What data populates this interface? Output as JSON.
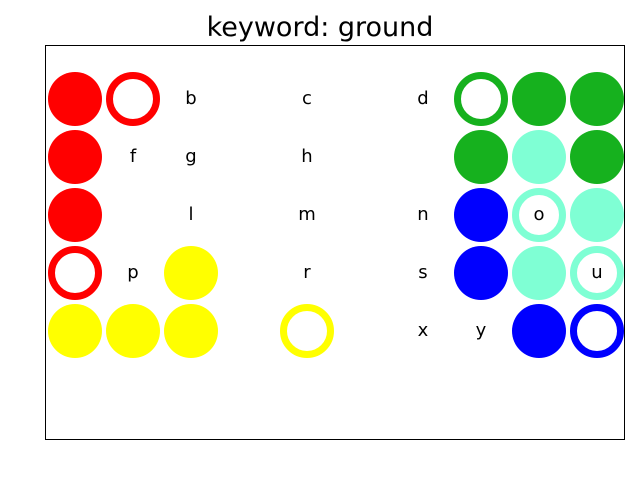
{
  "title": "keyword: ground",
  "colors": {
    "red": "#ff0000",
    "green": "#16b11e",
    "mint": "#7fffd4",
    "blue": "#0000ff",
    "yellow": "#ffff00"
  },
  "board": {
    "rows": [
      [
        {
          "color": "red",
          "style": "filled"
        },
        {
          "color": "red",
          "style": "ring"
        },
        {
          "letter": "b"
        },
        {
          "letter": "c"
        },
        {
          "letter": "d"
        },
        {
          "color": "green",
          "style": "ring"
        },
        {
          "color": "green",
          "style": "filled"
        },
        {
          "color": "green",
          "style": "filled"
        }
      ],
      [
        {
          "color": "red",
          "style": "filled"
        },
        {
          "letter": "f"
        },
        {
          "letter": "g"
        },
        {
          "letter": "h"
        },
        {},
        {
          "color": "green",
          "style": "filled"
        },
        {
          "color": "mint",
          "style": "filled"
        },
        {
          "color": "green",
          "style": "filled"
        }
      ],
      [
        {
          "color": "red",
          "style": "filled"
        },
        {},
        {
          "letter": "l"
        },
        {
          "letter": "m"
        },
        {
          "letter": "n"
        },
        {
          "color": "blue",
          "style": "filled"
        },
        {
          "color": "mint",
          "style": "ring",
          "letter": "o"
        },
        {
          "color": "mint",
          "style": "filled"
        }
      ],
      [
        {
          "color": "red",
          "style": "ring"
        },
        {
          "letter": "p"
        },
        {
          "color": "yellow",
          "style": "filled"
        },
        {
          "letter": "r"
        },
        {
          "letter": "s"
        },
        {
          "color": "blue",
          "style": "filled"
        },
        {
          "color": "mint",
          "style": "filled"
        },
        {
          "color": "mint",
          "style": "ring",
          "letter": "u"
        }
      ],
      [
        {
          "color": "yellow",
          "style": "filled"
        },
        {
          "color": "yellow",
          "style": "filled"
        },
        {
          "color": "yellow",
          "style": "filled"
        },
        {
          "color": "yellow",
          "style": "ring"
        },
        {
          "letter": "x"
        },
        {
          "letter": "y"
        },
        {
          "color": "blue",
          "style": "filled"
        },
        {
          "color": "blue",
          "style": "ring"
        }
      ]
    ]
  }
}
